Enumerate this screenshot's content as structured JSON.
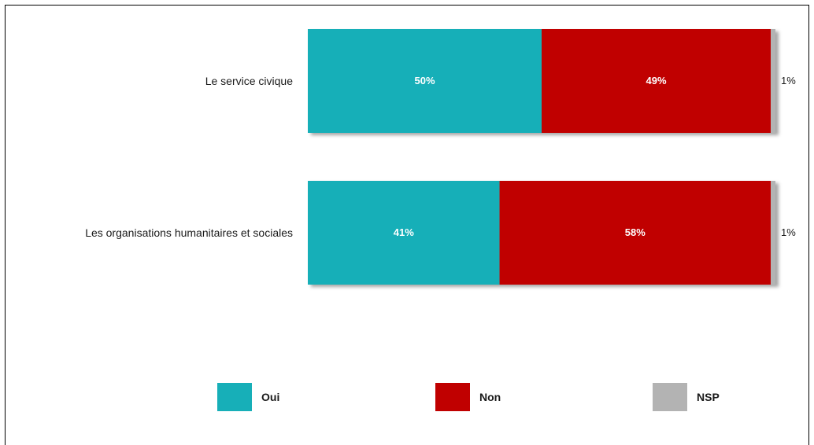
{
  "chart_data": {
    "type": "bar",
    "orientation": "horizontal",
    "stacked": true,
    "percent_stacked": true,
    "categories": [
      "Le service civique",
      "Les organisations humanitaires et sociales"
    ],
    "series": [
      {
        "name": "Oui",
        "values": [
          50,
          41
        ],
        "labels": [
          "50%",
          "41%"
        ],
        "color": "#17afb8"
      },
      {
        "name": "Non",
        "values": [
          49,
          58
        ],
        "labels": [
          "49%",
          "58%"
        ],
        "color": "#c00000"
      },
      {
        "name": "NSP",
        "values": [
          1,
          1
        ],
        "labels": [
          "1%",
          "1%"
        ],
        "color": "#b3b3b3"
      }
    ],
    "title": "",
    "xlabel": "",
    "ylabel": "",
    "xlim": [
      0,
      100
    ],
    "grid": false,
    "legend": "bottom"
  }
}
